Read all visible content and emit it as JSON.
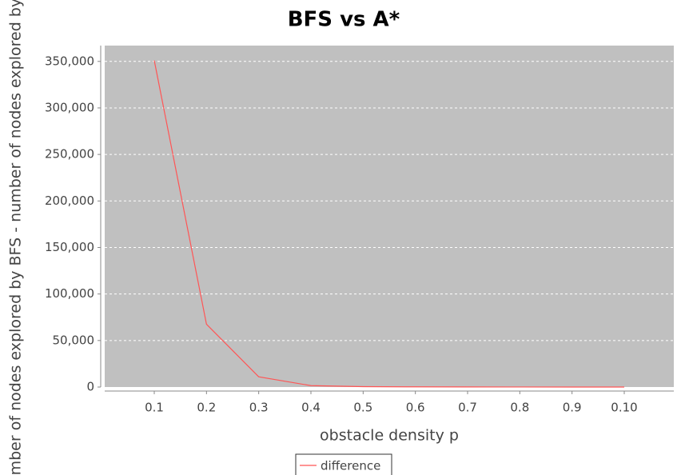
{
  "chart_data": {
    "type": "line",
    "title": "BFS vs A*",
    "x_label": "obstacle density p",
    "y_label": "Number of nodes explored by BFS - number of nodes explored by A*",
    "categories": [
      "0.1",
      "0.2",
      "0.3",
      "0.4",
      "0.5",
      "0.6",
      "0.7",
      "0.8",
      "0.9",
      "0.10"
    ],
    "series": [
      {
        "name": "difference",
        "color": "#ff5555",
        "values": [
          351000,
          67500,
          11000,
          1500,
          400,
          200,
          100,
          50,
          20,
          10
        ]
      }
    ],
    "ylim": [
      0,
      367000
    ],
    "yticks": [
      0,
      {
        "value": 50000,
        "label": "50,000"
      },
      {
        "value": 100000,
        "label": "100,000"
      },
      {
        "value": 150000,
        "label": "150,000"
      },
      {
        "value": 200000,
        "label": "200,000"
      },
      {
        "value": 250000,
        "label": "250,000"
      },
      {
        "value": 300000,
        "label": "300,000"
      },
      {
        "value": 350000,
        "label": "350,000"
      }
    ],
    "grid": true,
    "legend": "bottom"
  }
}
